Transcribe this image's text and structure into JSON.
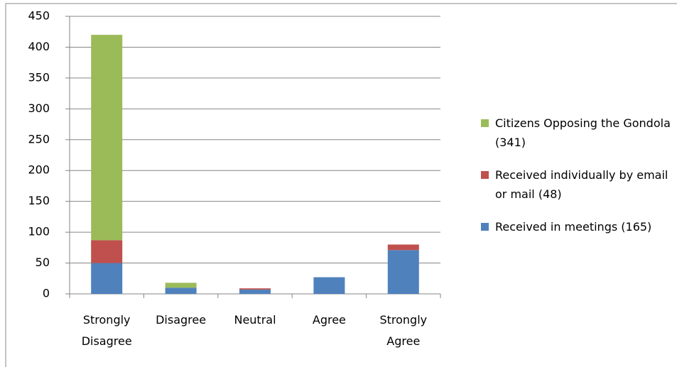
{
  "chart_data": {
    "type": "stacked_bar",
    "categories": [
      "Strongly Disagree",
      "Disagree",
      "Neutral",
      "Agree",
      "Strongly Agree"
    ],
    "series": [
      {
        "name": "Received in meetings (165)",
        "color": "#4f81bd",
        "values": [
          50,
          10,
          7,
          27,
          71
        ]
      },
      {
        "name": "Received individually by email or mail (48)",
        "color": "#c0504d",
        "values": [
          37,
          0,
          2,
          0,
          9
        ]
      },
      {
        "name": "Citizens Opposing the Gondola (341)",
        "color": "#9bbb59",
        "values": [
          333,
          8,
          0,
          0,
          0
        ]
      }
    ],
    "ylim": [
      0,
      450
    ],
    "yticks": [
      0,
      50,
      100,
      150,
      200,
      250,
      300,
      350,
      400,
      450
    ],
    "grid": true,
    "legend": "right"
  }
}
